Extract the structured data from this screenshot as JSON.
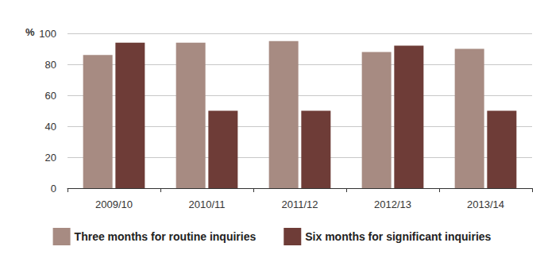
{
  "chart_data": {
    "type": "bar",
    "ylabel": "%",
    "categories": [
      "2009/10",
      "2010/11",
      "2011/12",
      "2012/13",
      "2013/14"
    ],
    "series": [
      {
        "name": "Three months for routine inquiries",
        "color": "#a78b82",
        "values": [
          86,
          94,
          95,
          88,
          90
        ]
      },
      {
        "name": "Six months for significant inquiries",
        "color": "#6e3c37",
        "values": [
          94,
          50,
          50,
          92,
          50
        ]
      }
    ],
    "ylim": [
      0,
      100
    ],
    "yticks": [
      0,
      20,
      40,
      60,
      80,
      100
    ],
    "grid": true,
    "legend": "bottom"
  }
}
